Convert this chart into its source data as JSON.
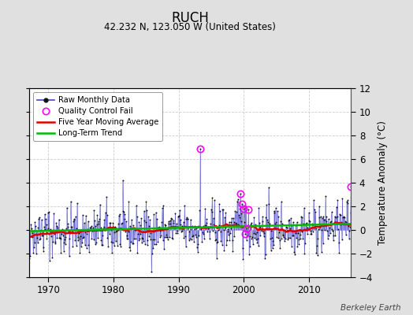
{
  "title": "RUCH",
  "subtitle": "42.232 N, 123.050 W (United States)",
  "ylabel_right": "Temperature Anomaly (°C)",
  "credit": "Berkeley Earth",
  "ylim": [
    -4,
    12
  ],
  "yticks": [
    -4,
    -2,
    0,
    2,
    4,
    6,
    8,
    10,
    12
  ],
  "xticks": [
    1970,
    1980,
    1990,
    2000,
    2010
  ],
  "year_start": 1964,
  "year_end": 2017,
  "fig_bg_color": "#e0e0e0",
  "plot_bg_color": "#ffffff",
  "raw_line_color": "#4444cc",
  "raw_dot_color": "#111111",
  "ma_color": "#dd0000",
  "trend_color": "#00bb00",
  "qc_color": "#ff00ff",
  "grid_color": "#cccccc",
  "seed": 42,
  "spike_year": 1993,
  "spike_month": 4,
  "spike_val": 6.85,
  "qc_years": [
    1993.33,
    1999.5,
    1999.75,
    2000.0,
    2000.25,
    2000.5,
    2000.75,
    2016.5
  ],
  "qc_vals": [
    6.85,
    3.1,
    2.2,
    1.8,
    -0.35,
    0.15,
    1.75,
    3.7
  ]
}
